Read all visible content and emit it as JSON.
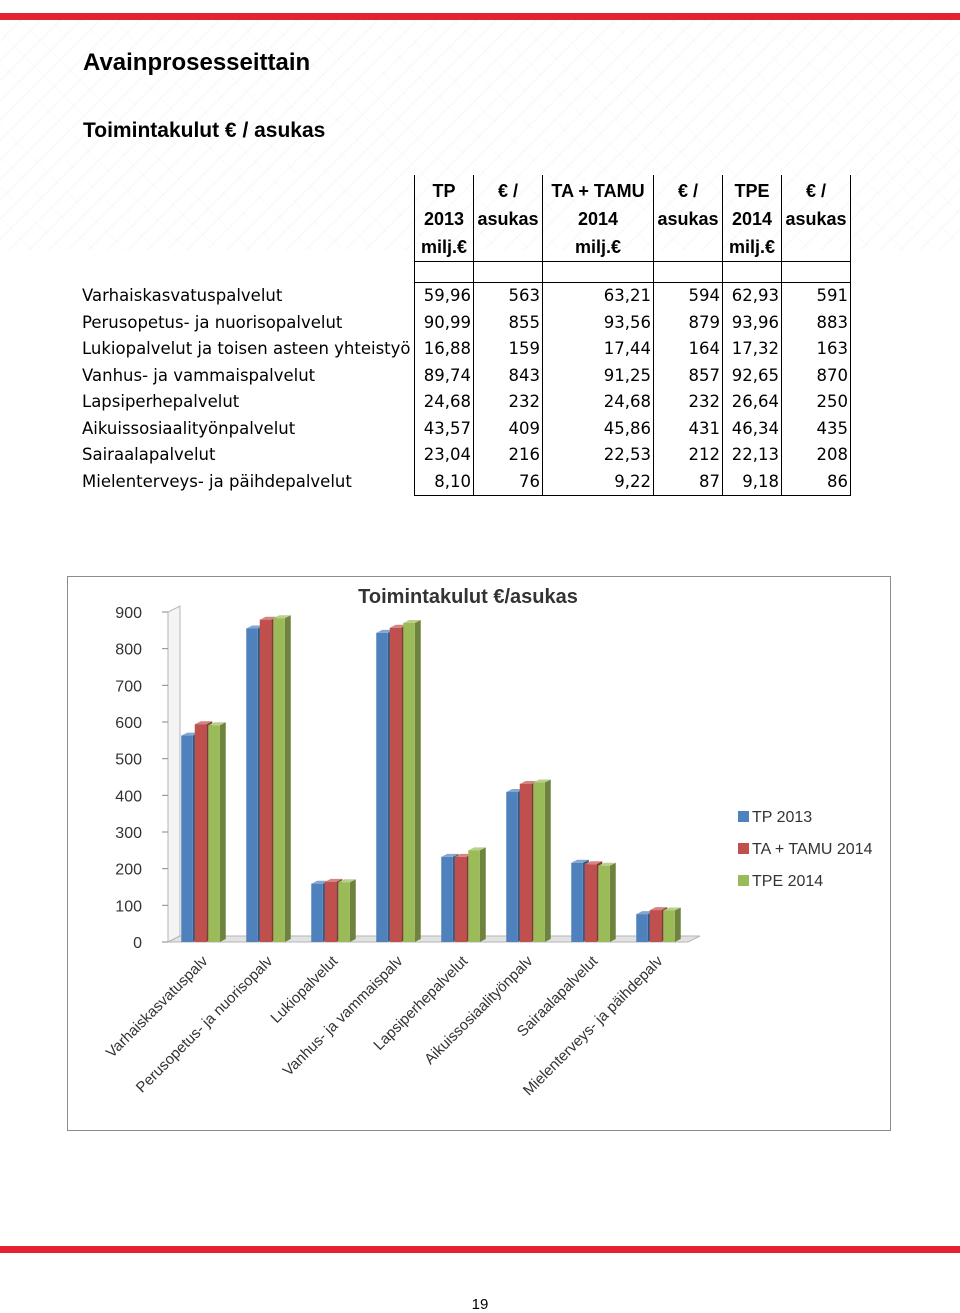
{
  "page": {
    "heading": "Avainprosesseittain",
    "subheading": "Toimintakulut € / asukas",
    "page_number": "19"
  },
  "table": {
    "headers": [
      [
        "TP",
        "2013",
        "milj.€"
      ],
      [
        "€ /",
        "asukas"
      ],
      [
        "TA + TAMU",
        "2014",
        "milj.€"
      ],
      [
        "€ /",
        "asukas"
      ],
      [
        "TPE",
        "2014",
        "milj.€"
      ],
      [
        "€ /",
        "asukas"
      ]
    ],
    "rows": [
      {
        "name": "Varhaiskasvatuspalvelut",
        "values": [
          "59,96",
          "563",
          "63,21",
          "594",
          "62,93",
          "591"
        ]
      },
      {
        "name": "Perusopetus- ja nuorisopalvelut",
        "values": [
          "90,99",
          "855",
          "93,56",
          "879",
          "93,96",
          "883"
        ]
      },
      {
        "name": "Lukiopalvelut ja toisen asteen yhteistyö",
        "values": [
          "16,88",
          "159",
          "17,44",
          "164",
          "17,32",
          "163"
        ]
      },
      {
        "name": "Vanhus- ja vammaispalvelut",
        "values": [
          "89,74",
          "843",
          "91,25",
          "857",
          "92,65",
          "870"
        ]
      },
      {
        "name": "Lapsiperhepalvelut",
        "values": [
          "24,68",
          "232",
          "24,68",
          "232",
          "26,64",
          "250"
        ]
      },
      {
        "name": "Aikuissosiaalityönpalvelut",
        "values": [
          "43,57",
          "409",
          "45,86",
          "431",
          "46,34",
          "435"
        ]
      },
      {
        "name": "Sairaalapalvelut",
        "values": [
          "23,04",
          "216",
          "22,53",
          "212",
          "22,13",
          "208"
        ]
      },
      {
        "name": "Mielenterveys- ja päihdepalvelut",
        "values": [
          "8,10",
          "76",
          "9,22",
          "87",
          "9,18",
          "86"
        ]
      }
    ]
  },
  "chart_data": {
    "type": "bar",
    "title": "Toimintakulut €/asukas",
    "categories": [
      "Varhaiskasvatuspalv",
      "Perusopetus- ja nuorisopalv",
      "Lukiopalvelut",
      "Vanhus- ja vammaispalv",
      "Lapsiperhepalvelut",
      "Aikuissosiaalityönpalv",
      "Sairaalapalvelut",
      "Mielenterveys- ja päihdepalv"
    ],
    "series": [
      {
        "name": "TP 2013",
        "color": "#4f81bd",
        "values": [
          563,
          855,
          159,
          843,
          232,
          409,
          216,
          76
        ]
      },
      {
        "name": "TA + TAMU 2014",
        "color": "#c0504d",
        "values": [
          594,
          879,
          164,
          857,
          232,
          431,
          212,
          87
        ]
      },
      {
        "name": "TPE 2014",
        "color": "#9bbb59",
        "values": [
          591,
          883,
          163,
          870,
          250,
          435,
          208,
          86
        ]
      }
    ],
    "yticks": [
      "0",
      "100",
      "200",
      "300",
      "400",
      "500",
      "600",
      "700",
      "800",
      "900"
    ],
    "ylim": [
      0,
      900
    ],
    "grid": false,
    "legend": "right",
    "style": "3d-clustered-column"
  }
}
